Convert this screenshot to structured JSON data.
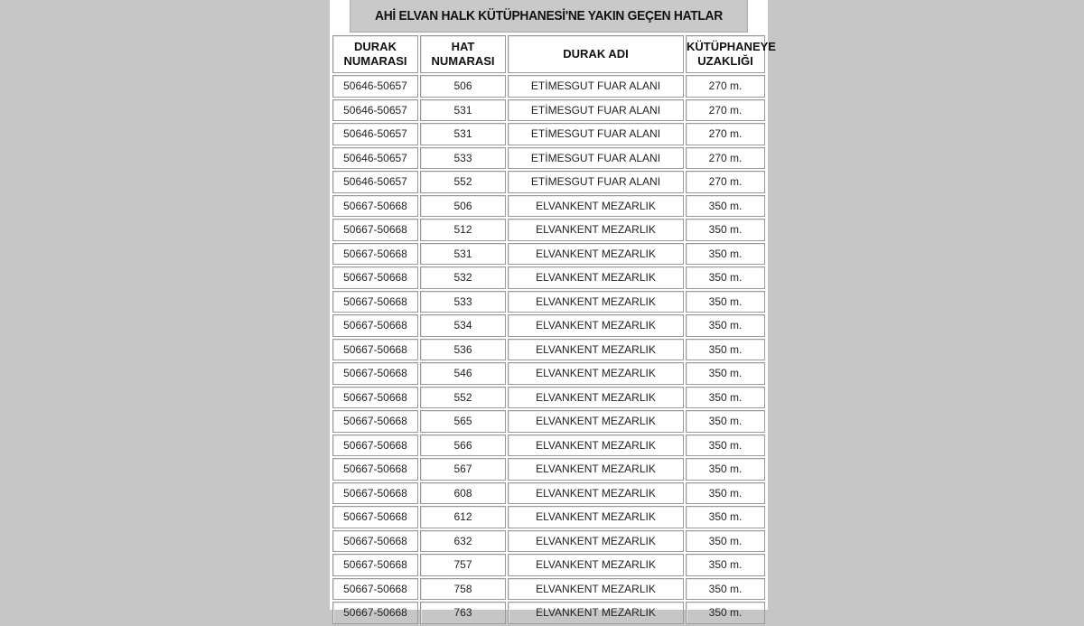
{
  "title": "AHİ ELVAN HALK KÜTÜPHANESİ'NE YAKIN GEÇEN HATLAR",
  "headers": [
    {
      "line1": "DURAK",
      "line2": "NUMARASI"
    },
    {
      "line1": "HAT",
      "line2": "NUMARASI"
    },
    {
      "line1": "DURAK ADI",
      "line2": ""
    },
    {
      "line1": "KÜTÜPHANEYE",
      "line2": "UZAKLIĞI"
    }
  ],
  "rows": [
    [
      "50646-50657",
      "506",
      "ETİMESGUT FUAR ALANI",
      "270 m."
    ],
    [
      "50646-50657",
      "531",
      "ETİMESGUT FUAR ALANI",
      "270 m."
    ],
    [
      "50646-50657",
      "531",
      "ETİMESGUT FUAR ALANI",
      "270 m."
    ],
    [
      "50646-50657",
      "533",
      "ETİMESGUT FUAR ALANI",
      "270 m."
    ],
    [
      "50646-50657",
      "552",
      "ETİMESGUT FUAR ALANI",
      "270 m."
    ],
    [
      "50667-50668",
      "506",
      "ELVANKENT MEZARLIK",
      "350 m."
    ],
    [
      "50667-50668",
      "512",
      "ELVANKENT MEZARLIK",
      "350 m."
    ],
    [
      "50667-50668",
      "531",
      "ELVANKENT MEZARLIK",
      "350 m."
    ],
    [
      "50667-50668",
      "532",
      "ELVANKENT MEZARLIK",
      "350 m."
    ],
    [
      "50667-50668",
      "533",
      "ELVANKENT MEZARLIK",
      "350 m."
    ],
    [
      "50667-50668",
      "534",
      "ELVANKENT MEZARLIK",
      "350 m."
    ],
    [
      "50667-50668",
      "536",
      "ELVANKENT MEZARLIK",
      "350 m."
    ],
    [
      "50667-50668",
      "546",
      "ELVANKENT MEZARLIK",
      "350 m."
    ],
    [
      "50667-50668",
      "552",
      "ELVANKENT MEZARLIK",
      "350 m."
    ],
    [
      "50667-50668",
      "565",
      "ELVANKENT MEZARLIK",
      "350 m."
    ],
    [
      "50667-50668",
      "566",
      "ELVANKENT MEZARLIK",
      "350 m."
    ],
    [
      "50667-50668",
      "567",
      "ELVANKENT MEZARLIK",
      "350 m."
    ],
    [
      "50667-50668",
      "608",
      "ELVANKENT MEZARLIK",
      "350 m."
    ],
    [
      "50667-50668",
      "612",
      "ELVANKENT MEZARLIK",
      "350 m."
    ],
    [
      "50667-50668",
      "632",
      "ELVANKENT MEZARLIK",
      "350 m."
    ],
    [
      "50667-50668",
      "757",
      "ELVANKENT MEZARLIK",
      "350 m."
    ],
    [
      "50667-50668",
      "758",
      "ELVANKENT MEZARLIK",
      "350 m."
    ],
    [
      "50667-50668",
      "763",
      "ELVANKENT MEZARLIK",
      "350 m."
    ]
  ]
}
